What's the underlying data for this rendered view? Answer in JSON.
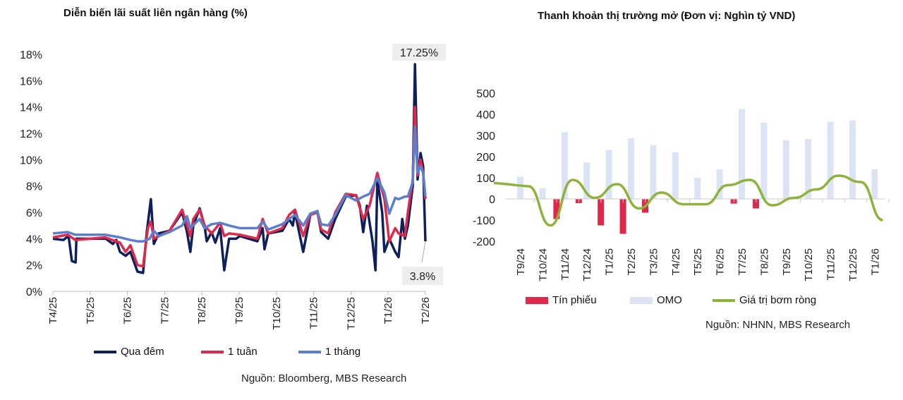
{
  "chart_data": [
    {
      "type": "line",
      "title": "Diễn biến lãi suất liên ngân hàng (%)",
      "source": "Nguồn: Bloomberg, MBS Research",
      "x_tick_labels": [
        "T4/25",
        "T5/25",
        "T6/25",
        "T7/25",
        "T8/25",
        "T9/25",
        "T10/25",
        "T11/25",
        "T12/25",
        "T1/26",
        "T2/26"
      ],
      "y_tick_labels": [
        "0%",
        "2%",
        "4%",
        "6%",
        "8%",
        "10%",
        "12%",
        "14%",
        "16%",
        "18%"
      ],
      "ylim": [
        0,
        18
      ],
      "x_unit": "months since T4/25",
      "annotations": [
        "17.25%",
        "3.8%"
      ],
      "series": [
        {
          "name": "Qua đêm",
          "color": "#0d1f5c",
          "points": [
            [
              0,
              4.0
            ],
            [
              0.28,
              3.9
            ],
            [
              0.42,
              4.2
            ],
            [
              0.51,
              2.3
            ],
            [
              0.61,
              2.2
            ],
            [
              0.63,
              4.0
            ],
            [
              1.42,
              4.0
            ],
            [
              1.61,
              3.6
            ],
            [
              1.7,
              3.9
            ],
            [
              1.8,
              3.0
            ],
            [
              1.95,
              2.7
            ],
            [
              2.08,
              3.0
            ],
            [
              2.27,
              1.5
            ],
            [
              2.42,
              1.4
            ],
            [
              2.52,
              4.5
            ],
            [
              2.63,
              7.0
            ],
            [
              2.71,
              3.6
            ],
            [
              2.84,
              4.4
            ],
            [
              3.13,
              4.6
            ],
            [
              3.47,
              6.0
            ],
            [
              3.6,
              4.5
            ],
            [
              3.69,
              3.0
            ],
            [
              3.77,
              5.0
            ],
            [
              3.94,
              6.3
            ],
            [
              4.07,
              5.0
            ],
            [
              4.13,
              3.8
            ],
            [
              4.26,
              4.5
            ],
            [
              4.36,
              3.7
            ],
            [
              4.49,
              4.8
            ],
            [
              4.6,
              1.6
            ],
            [
              4.73,
              4.0
            ],
            [
              4.92,
              4.0
            ],
            [
              5.02,
              4.2
            ],
            [
              5.49,
              3.8
            ],
            [
              5.63,
              4.8
            ],
            [
              5.68,
              3.2
            ],
            [
              5.78,
              4.4
            ],
            [
              6.16,
              4.6
            ],
            [
              6.34,
              5.5
            ],
            [
              6.44,
              5.0
            ],
            [
              6.5,
              6.0
            ],
            [
              6.72,
              3.0
            ],
            [
              6.91,
              5.8
            ],
            [
              7.1,
              6.1
            ],
            [
              7.2,
              4.5
            ],
            [
              7.39,
              4.0
            ],
            [
              7.58,
              5.5
            ],
            [
              7.86,
              7.2
            ],
            [
              8.14,
              7.3
            ],
            [
              8.24,
              6.5
            ],
            [
              8.33,
              4.5
            ],
            [
              8.43,
              6.5
            ],
            [
              8.58,
              3.8
            ],
            [
              8.66,
              1.6
            ],
            [
              8.71,
              8.5
            ],
            [
              8.84,
              6.0
            ],
            [
              8.9,
              3.0
            ],
            [
              9.03,
              4.0
            ],
            [
              9.19,
              3.0
            ],
            [
              9.28,
              2.6
            ],
            [
              9.38,
              5.5
            ],
            [
              9.45,
              4.0
            ],
            [
              9.53,
              5.0
            ],
            [
              9.66,
              8.0
            ],
            [
              9.72,
              17.25
            ],
            [
              9.79,
              8.5
            ],
            [
              9.87,
              10.5
            ],
            [
              9.94,
              9.5
            ],
            [
              10,
              3.8
            ]
          ]
        },
        {
          "name": "1 tuần",
          "color": "#e0284a",
          "points": [
            [
              0,
              4.1
            ],
            [
              0.4,
              4.3
            ],
            [
              0.6,
              3.9
            ],
            [
              1.4,
              4.1
            ],
            [
              1.8,
              3.7
            ],
            [
              1.95,
              3.0
            ],
            [
              2.08,
              3.5
            ],
            [
              2.27,
              2.0
            ],
            [
              2.42,
              1.9
            ],
            [
              2.55,
              4.8
            ],
            [
              2.63,
              5.3
            ],
            [
              2.71,
              4.0
            ],
            [
              3.13,
              4.6
            ],
            [
              3.47,
              6.2
            ],
            [
              3.6,
              5.0
            ],
            [
              3.69,
              4.2
            ],
            [
              3.77,
              5.5
            ],
            [
              3.94,
              6.2
            ],
            [
              4.07,
              5.0
            ],
            [
              4.26,
              4.4
            ],
            [
              4.49,
              5.2
            ],
            [
              4.6,
              4.2
            ],
            [
              4.73,
              4.4
            ],
            [
              5.02,
              4.3
            ],
            [
              5.49,
              4.0
            ],
            [
              5.63,
              5.5
            ],
            [
              5.78,
              4.4
            ],
            [
              6.16,
              4.8
            ],
            [
              6.34,
              5.8
            ],
            [
              6.5,
              6.2
            ],
            [
              6.72,
              4.2
            ],
            [
              6.91,
              5.8
            ],
            [
              7.1,
              6.0
            ],
            [
              7.2,
              4.7
            ],
            [
              7.39,
              4.4
            ],
            [
              7.58,
              6.0
            ],
            [
              7.86,
              7.4
            ],
            [
              8.14,
              7.3
            ],
            [
              8.33,
              5.5
            ],
            [
              8.5,
              6.5
            ],
            [
              8.71,
              9.0
            ],
            [
              8.9,
              7.0
            ],
            [
              9.03,
              3.8
            ],
            [
              9.19,
              4.8
            ],
            [
              9.28,
              4.4
            ],
            [
              9.45,
              4.2
            ],
            [
              9.53,
              6.0
            ],
            [
              9.66,
              8.5
            ],
            [
              9.72,
              14.0
            ],
            [
              9.79,
              8.8
            ],
            [
              9.87,
              10.0
            ],
            [
              9.94,
              9.0
            ],
            [
              10,
              7.0
            ]
          ]
        },
        {
          "name": "1 tháng",
          "color": "#5b7fcf",
          "points": [
            [
              0,
              4.4
            ],
            [
              0.4,
              4.5
            ],
            [
              0.6,
              4.3
            ],
            [
              1.4,
              4.3
            ],
            [
              1.8,
              4.1
            ],
            [
              2.08,
              3.9
            ],
            [
              2.27,
              3.8
            ],
            [
              2.42,
              3.8
            ],
            [
              2.6,
              4.0
            ],
            [
              2.71,
              4.6
            ],
            [
              2.84,
              4.2
            ],
            [
              3.13,
              4.5
            ],
            [
              3.47,
              5.0
            ],
            [
              3.6,
              5.7
            ],
            [
              3.69,
              4.8
            ],
            [
              3.94,
              5.5
            ],
            [
              4.07,
              4.8
            ],
            [
              4.26,
              5.1
            ],
            [
              4.49,
              5.2
            ],
            [
              4.73,
              5.0
            ],
            [
              5.02,
              4.8
            ],
            [
              5.49,
              4.8
            ],
            [
              5.63,
              5.3
            ],
            [
              5.78,
              4.7
            ],
            [
              6.16,
              5.1
            ],
            [
              6.34,
              5.5
            ],
            [
              6.5,
              5.8
            ],
            [
              6.72,
              5.0
            ],
            [
              6.91,
              5.9
            ],
            [
              7.1,
              6.1
            ],
            [
              7.2,
              5.1
            ],
            [
              7.39,
              5.0
            ],
            [
              7.58,
              5.8
            ],
            [
              7.86,
              7.3
            ],
            [
              8.14,
              6.9
            ],
            [
              8.33,
              7.2
            ],
            [
              8.5,
              7.4
            ],
            [
              8.71,
              8.6
            ],
            [
              8.9,
              7.5
            ],
            [
              9.03,
              5.9
            ],
            [
              9.19,
              7.1
            ],
            [
              9.28,
              7.0
            ],
            [
              9.45,
              7.2
            ],
            [
              9.53,
              7.2
            ],
            [
              9.66,
              8.3
            ],
            [
              9.72,
              12.5
            ],
            [
              9.79,
              9.0
            ],
            [
              9.87,
              9.5
            ],
            [
              9.94,
              9.0
            ],
            [
              10,
              7.2
            ]
          ]
        }
      ]
    },
    {
      "type": "bar",
      "title": "Thanh khoản thị trường mở (Đơn vị: Nghìn tỷ VND)",
      "source": "Nguồn: NHNN, MBS Research",
      "categories": [
        "T9/24",
        "T10/24",
        "T11/24",
        "T12/24",
        "T1/25",
        "T2/25",
        "T3/25",
        "T4/25",
        "T5/25",
        "T6/25",
        "T7/25",
        "T8/25",
        "T9/25",
        "T10/25",
        "T11/25",
        "T12/25",
        "T1/26"
      ],
      "y_tick_labels": [
        "-200",
        "-100",
        "0",
        "100",
        "200",
        "300",
        "400",
        "500"
      ],
      "ylim": [
        -200,
        500
      ],
      "series": [
        {
          "name": "Tín phiếu",
          "type": "bar",
          "color": "#e0284a",
          "values": [
            0,
            -95,
            -20,
            -125,
            -165,
            -65,
            -2,
            0,
            0,
            -22,
            -45,
            0,
            0,
            0,
            0,
            0,
            0
          ]
        },
        {
          "name": "OMO",
          "type": "bar",
          "color": "#dbe3f5",
          "values": [
            105,
            50,
            315,
            172,
            232,
            287,
            255,
            220,
            100,
            140,
            425,
            360,
            277,
            283,
            365,
            370,
            140
          ]
        },
        {
          "name": "Giá trị bơm ròng",
          "type": "line",
          "color": "#8db33a",
          "values": [
            60,
            -125,
            90,
            5,
            70,
            -45,
            30,
            -25,
            -25,
            65,
            90,
            -30,
            5,
            45,
            110,
            80,
            -100
          ]
        }
      ]
    }
  ]
}
